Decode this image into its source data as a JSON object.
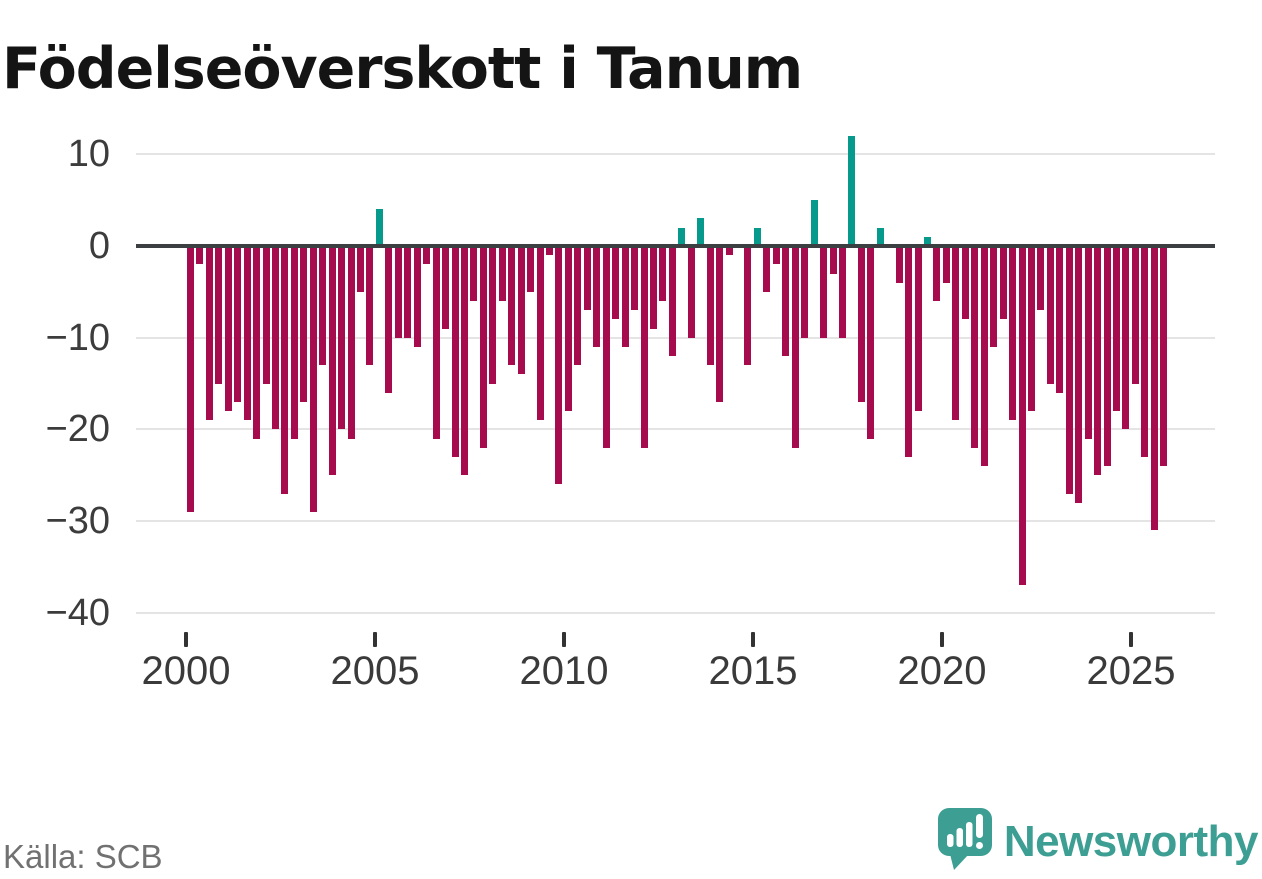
{
  "title": "Födelseöverskott i Tanum",
  "source_label": "Källa: SCB",
  "brand": {
    "name": "Newsworthy"
  },
  "colors": {
    "bar_negative": "#a50b4d",
    "bar_positive": "#069a8d",
    "zero_line": "#3b3f42",
    "gridline": "#e4e4e4",
    "brand_teal": "#3d9e93"
  },
  "chart_data": {
    "type": "bar",
    "title": "Födelseöverskott i Tanum",
    "period": "quarterly",
    "x_start": "2000-Q1",
    "x_end": "2025-Q4",
    "x_tick_labels": [
      "2000",
      "2005",
      "2010",
      "2015",
      "2020",
      "2025"
    ],
    "y_ticks": [
      10,
      0,
      -10,
      -20,
      -30,
      -40
    ],
    "y_tick_labels": [
      "10",
      "0",
      "−10",
      "−20",
      "−30",
      "−40"
    ],
    "ylim": [
      -43,
      14
    ],
    "grid": "horizontal",
    "legend": "none",
    "series": [
      {
        "name": "Födelseöverskott",
        "values": [
          -29,
          -2,
          -19,
          -15,
          -18,
          -17,
          -19,
          -21,
          -15,
          -20,
          -27,
          -21,
          -17,
          -29,
          -13,
          -25,
          -20,
          -21,
          -5,
          -13,
          4,
          -16,
          -10,
          -10,
          -11,
          -2,
          -21,
          -9,
          -23,
          -25,
          -6,
          -22,
          -15,
          -6,
          -13,
          -14,
          -5,
          -19,
          -1,
          -26,
          -18,
          -13,
          -7,
          -11,
          -22,
          -8,
          -11,
          -7,
          -22,
          -9,
          -6,
          -12,
          2,
          -10,
          3,
          -13,
          -17,
          -1,
          0,
          -13,
          2,
          -5,
          -2,
          -12,
          -22,
          -10,
          5,
          -10,
          -3,
          -10,
          12,
          -17,
          -21,
          2,
          0,
          -4,
          -23,
          -18,
          1,
          -6,
          -4,
          -19,
          -8,
          -22,
          -24,
          -11,
          -8,
          -19,
          -37,
          -18,
          -7,
          -15,
          -16,
          -27,
          -28,
          -21,
          -25,
          -24,
          -18,
          -20,
          -15,
          -23,
          -31,
          -24
        ]
      }
    ],
    "source": "Källa: SCB"
  }
}
